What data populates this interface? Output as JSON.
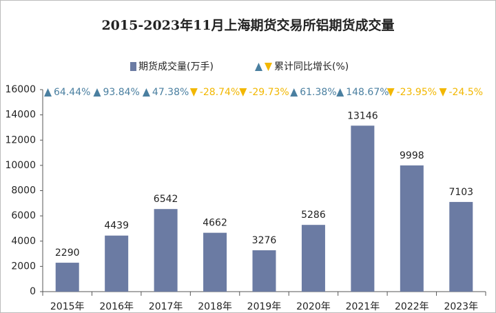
{
  "chart_data": {
    "type": "bar",
    "title": "2015-2023年11月上海期货交易所铝期货成交量",
    "categories": [
      "2015年",
      "2016年",
      "2017年",
      "2018年",
      "2019年",
      "2020年",
      "2021年",
      "2022年",
      "2023年"
    ],
    "series": [
      {
        "name": "期货成交量(万手)",
        "color": "#6b7ba3",
        "values": [
          2290,
          4439,
          6542,
          4662,
          3276,
          5286,
          13146,
          9998,
          7103
        ]
      }
    ],
    "growth": {
      "name": "累计同比增长(%)",
      "up_color": "#4a7fa0",
      "down_color": "#f2b700",
      "values": [
        64.44,
        93.84,
        47.38,
        -28.74,
        -29.73,
        61.38,
        148.67,
        -23.95,
        -24.5
      ],
      "value_labels": [
        "64.44%",
        "93.84%",
        "47.38%",
        "-28.74%",
        "-29.73%",
        "61.38%",
        "148.67%",
        "-23.95%",
        "-24.5%"
      ]
    },
    "ylim": [
      0,
      16000
    ],
    "yticks": [
      0,
      2000,
      4000,
      6000,
      8000,
      10000,
      12000,
      14000,
      16000
    ],
    "grid": false
  }
}
